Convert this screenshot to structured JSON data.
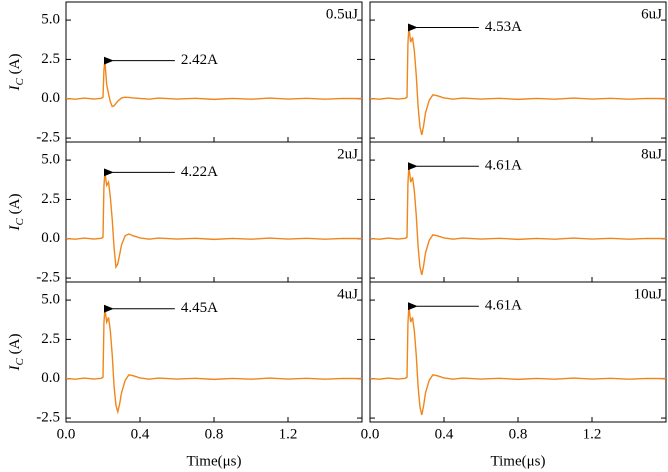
{
  "chart_data": [
    {
      "type": "line",
      "label": "0.5uJ",
      "peak_label": "2.42A",
      "color": "#f0861a",
      "y_label": "IC (A)",
      "x": [
        0,
        0.05,
        0.1,
        0.15,
        0.19,
        0.2,
        0.205,
        0.21,
        0.22,
        0.23,
        0.24,
        0.25,
        0.26,
        0.27,
        0.28,
        0.29,
        0.3,
        0.32,
        0.34,
        0.36,
        0.4,
        0.45,
        0.5,
        0.6,
        0.7,
        0.8,
        0.9,
        1,
        1.1,
        1.2,
        1.3,
        1.4,
        1.5,
        1.6
      ],
      "values": [
        0.02,
        -0.03,
        0.04,
        -0.02,
        0.03,
        0.1,
        1.8,
        2.42,
        0.9,
        0.3,
        -0.2,
        -0.5,
        -0.45,
        -0.3,
        -0.15,
        -0.05,
        0.05,
        0.1,
        0.08,
        0.05,
        0.02,
        -0.03,
        0.04,
        -0.02,
        0.03,
        -0.04,
        0.02,
        -0.03,
        0.04,
        -0.02,
        0.03,
        -0.03,
        0.02,
        0.01
      ],
      "xlim": [
        0,
        1.6
      ],
      "ylim": [
        -2.75,
        6.15
      ],
      "xticks": [
        0,
        0.4,
        0.8,
        1.2
      ],
      "yticks": [
        {
          "value": -2.5,
          "label": "-2.5"
        },
        {
          "value": 0,
          "label": "0.0"
        },
        {
          "value": 2.5,
          "label": "2.5"
        },
        {
          "value": 5,
          "label": "5.0"
        }
      ]
    },
    {
      "type": "line",
      "label": "6uJ",
      "peak_label": "4.53A",
      "color": "#f0861a",
      "x": [
        0,
        0.05,
        0.1,
        0.15,
        0.19,
        0.2,
        0.205,
        0.21,
        0.22,
        0.23,
        0.24,
        0.25,
        0.26,
        0.27,
        0.28,
        0.29,
        0.3,
        0.32,
        0.34,
        0.36,
        0.4,
        0.45,
        0.5,
        0.6,
        0.7,
        0.8,
        0.9,
        1,
        1.1,
        1.2,
        1.3,
        1.4,
        1.5,
        1.6
      ],
      "values": [
        0.02,
        -0.03,
        0.04,
        -0.02,
        0.03,
        0.1,
        3.5,
        4.53,
        3.6,
        3.9,
        3.0,
        1.5,
        -0.5,
        -1.8,
        -2.3,
        -1.7,
        -0.9,
        -0.1,
        0.25,
        0.2,
        0.05,
        -0.03,
        0.04,
        -0.02,
        0.03,
        -0.04,
        0.02,
        -0.03,
        0.04,
        -0.02,
        0.03,
        -0.03,
        0.02,
        0.01
      ],
      "xlim": [
        0,
        1.6
      ],
      "ylim": [
        -2.75,
        6.15
      ],
      "xticks": [
        0,
        0.4,
        0.8,
        1.2
      ],
      "yticks": [
        -2.5,
        0,
        2.5,
        5
      ]
    },
    {
      "type": "line",
      "label": "2uJ",
      "peak_label": "4.22A",
      "color": "#f0861a",
      "y_label": "IC (A)",
      "x": [
        0,
        0.05,
        0.1,
        0.15,
        0.19,
        0.2,
        0.205,
        0.21,
        0.22,
        0.23,
        0.24,
        0.25,
        0.26,
        0.27,
        0.28,
        0.29,
        0.3,
        0.32,
        0.34,
        0.36,
        0.4,
        0.45,
        0.5,
        0.6,
        0.7,
        0.8,
        0.9,
        1,
        1.1,
        1.2,
        1.3,
        1.4,
        1.5,
        1.6
      ],
      "values": [
        0.02,
        -0.03,
        0.04,
        -0.02,
        0.03,
        0.1,
        3.3,
        4.22,
        3.4,
        3.6,
        2.6,
        1.2,
        -0.6,
        -1.8,
        -1.6,
        -1.0,
        -0.4,
        0.2,
        0.3,
        0.2,
        0.05,
        -0.03,
        0.04,
        -0.02,
        0.03,
        -0.04,
        0.02,
        -0.03,
        0.04,
        -0.02,
        0.03,
        -0.03,
        0.02,
        0.01
      ],
      "xlim": [
        0,
        1.6
      ],
      "ylim": [
        -2.75,
        6.15
      ],
      "xticks": [
        0,
        0.4,
        0.8,
        1.2
      ],
      "yticks": [
        {
          "value": -2.5,
          "label": "-2.5"
        },
        {
          "value": 0,
          "label": "0.0"
        },
        {
          "value": 2.5,
          "label": "2.5"
        },
        {
          "value": 5,
          "label": "5.0"
        }
      ]
    },
    {
      "type": "line",
      "label": "8uJ",
      "peak_label": "4.61A",
      "color": "#f0861a",
      "x": [
        0,
        0.05,
        0.1,
        0.15,
        0.19,
        0.2,
        0.205,
        0.21,
        0.22,
        0.23,
        0.24,
        0.25,
        0.26,
        0.27,
        0.28,
        0.29,
        0.3,
        0.32,
        0.34,
        0.36,
        0.4,
        0.45,
        0.5,
        0.6,
        0.7,
        0.8,
        0.9,
        1,
        1.1,
        1.2,
        1.3,
        1.4,
        1.5,
        1.6
      ],
      "values": [
        0.02,
        -0.03,
        0.04,
        -0.02,
        0.03,
        0.1,
        3.5,
        4.61,
        3.6,
        3.9,
        3.0,
        1.5,
        -0.5,
        -1.8,
        -2.3,
        -1.7,
        -0.9,
        -0.1,
        0.25,
        0.2,
        0.05,
        -0.03,
        0.04,
        -0.02,
        0.03,
        -0.04,
        0.02,
        -0.03,
        0.04,
        -0.02,
        0.03,
        -0.03,
        0.02,
        0.01
      ],
      "xlim": [
        0,
        1.6
      ],
      "ylim": [
        -2.75,
        6.15
      ],
      "xticks": [
        0,
        0.4,
        0.8,
        1.2
      ],
      "yticks": [
        -2.5,
        0,
        2.5,
        5
      ]
    },
    {
      "type": "line",
      "label": "4uJ",
      "peak_label": "4.45A",
      "color": "#f0861a",
      "y_label": "IC (A)",
      "x_label": "Time(μs)",
      "x": [
        0,
        0.05,
        0.1,
        0.15,
        0.19,
        0.2,
        0.205,
        0.21,
        0.22,
        0.23,
        0.24,
        0.25,
        0.26,
        0.27,
        0.28,
        0.29,
        0.3,
        0.32,
        0.34,
        0.36,
        0.4,
        0.45,
        0.5,
        0.6,
        0.7,
        0.8,
        0.9,
        1,
        1.1,
        1.2,
        1.3,
        1.4,
        1.5,
        1.6
      ],
      "values": [
        0.02,
        -0.03,
        0.04,
        -0.02,
        0.03,
        0.1,
        3.5,
        4.45,
        3.6,
        3.9,
        3.0,
        1.5,
        -0.5,
        -1.7,
        -2.1,
        -1.6,
        -0.9,
        -0.1,
        0.25,
        0.2,
        0.05,
        -0.03,
        0.04,
        -0.02,
        0.03,
        -0.04,
        0.02,
        -0.03,
        0.04,
        -0.02,
        0.03,
        -0.03,
        0.02,
        0.01
      ],
      "xlim": [
        0,
        1.6
      ],
      "ylim": [
        -2.75,
        6.15
      ],
      "xticks": [
        {
          "value": 0,
          "label": "0.0"
        },
        {
          "value": 0.4,
          "label": "0.4"
        },
        {
          "value": 0.8,
          "label": "0.8"
        },
        {
          "value": 1.2,
          "label": "1.2"
        }
      ],
      "yticks": [
        {
          "value": -2.5,
          "label": "-2.5"
        },
        {
          "value": 0,
          "label": "0.0"
        },
        {
          "value": 2.5,
          "label": "2.5"
        },
        {
          "value": 5,
          "label": "5.0"
        }
      ]
    },
    {
      "type": "line",
      "label": "10uJ",
      "peak_label": "4.61A",
      "color": "#f0861a",
      "x_label": "Time(μs)",
      "x": [
        0,
        0.05,
        0.1,
        0.15,
        0.19,
        0.2,
        0.205,
        0.21,
        0.22,
        0.23,
        0.24,
        0.25,
        0.26,
        0.27,
        0.28,
        0.29,
        0.3,
        0.32,
        0.34,
        0.36,
        0.4,
        0.45,
        0.5,
        0.6,
        0.7,
        0.8,
        0.9,
        1,
        1.1,
        1.2,
        1.3,
        1.4,
        1.5,
        1.6
      ],
      "values": [
        0.02,
        -0.03,
        0.04,
        -0.02,
        0.03,
        0.1,
        3.5,
        4.61,
        3.6,
        3.9,
        3.0,
        1.5,
        -0.5,
        -1.8,
        -2.3,
        -1.7,
        -0.9,
        -0.1,
        0.25,
        0.2,
        0.05,
        -0.03,
        0.04,
        -0.02,
        0.03,
        -0.04,
        0.02,
        -0.03,
        0.04,
        -0.02,
        0.03,
        -0.03,
        0.02,
        0.01
      ],
      "xlim": [
        0,
        1.6
      ],
      "ylim": [
        -2.75,
        6.15
      ],
      "xticks": [
        {
          "value": 0,
          "label": "0.0"
        },
        {
          "value": 0.4,
          "label": "0.4"
        },
        {
          "value": 0.8,
          "label": "0.8"
        },
        {
          "value": 1.2,
          "label": "1.2"
        }
      ],
      "yticks": [
        -2.5,
        0,
        2.5,
        5
      ]
    }
  ]
}
